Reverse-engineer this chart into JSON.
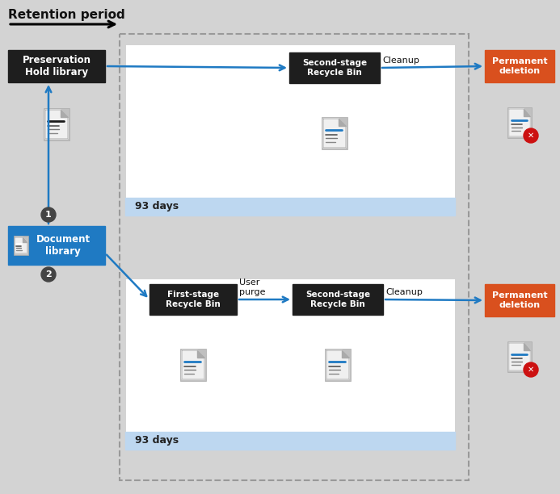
{
  "bg_color": "#d3d3d3",
  "white": "#ffffff",
  "light_gray": "#e8e8e8",
  "dark_box": "#1e1e1e",
  "blue": "#1f7ac3",
  "orange": "#d9501e",
  "light_blue_bg": "#bdd7f0",
  "arrow_color": "#1f7ac3",
  "text_dark": "#111111",
  "text_white": "#ffffff",
  "title": "Retention period",
  "box1_label": "Preservation\nHold library",
  "box2_label": "Document\nlibrary",
  "box3_label": "Second-stage\nRecycle Bin",
  "box4_label": "First-stage\nRecycle Bin",
  "box5_label": "Second-stage\nRecycle Bin",
  "box6_label": "Permanent\ndeletion",
  "box7_label": "Permanent\ndeletion",
  "label_93days_1": "93 days",
  "label_93days_2": "93 days",
  "label_cleanup1": "Cleanup",
  "label_cleanup2": "Cleanup",
  "label_userpurge": "User\npurge",
  "fig_w": 6.93,
  "fig_h": 6.12,
  "dpi": 100
}
